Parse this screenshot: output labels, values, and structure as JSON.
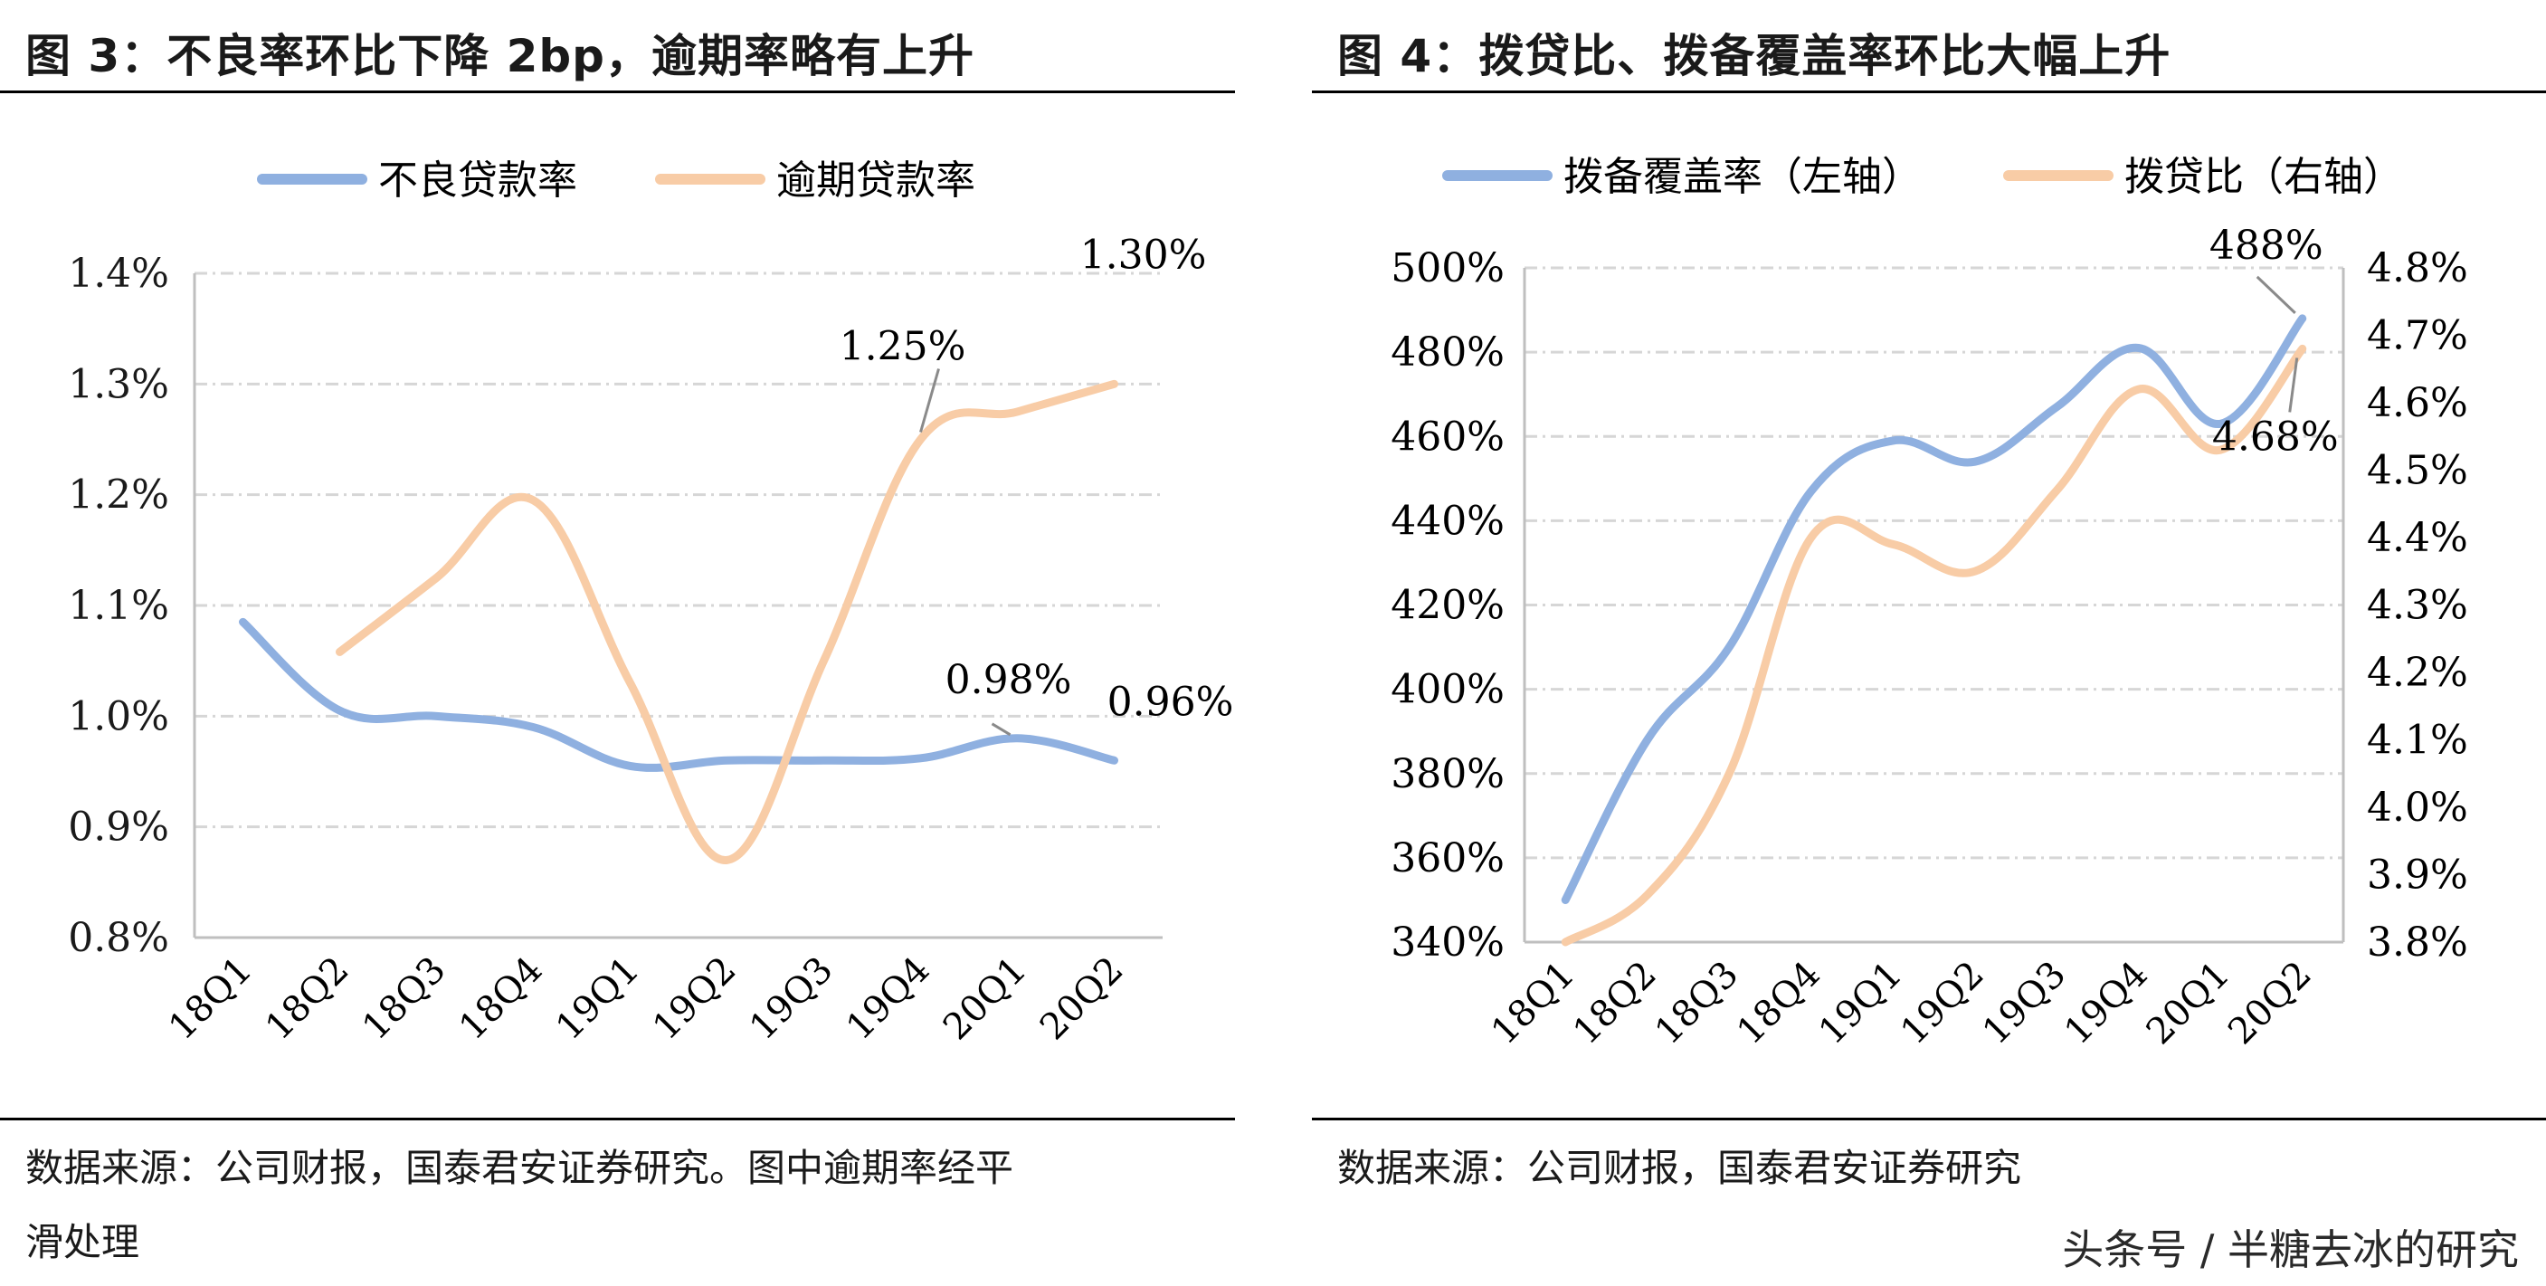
{
  "figures": [
    {
      "title": "图 3：不良率环比下降 2bp，逾期率略有上升",
      "source": "数据来源：公司财报，国泰君安证券研究。图中逾期率经平\n滑处理"
    },
    {
      "title": "图 4：拨贷比、拨备覆盖率环比大幅上升",
      "source": "数据来源：公司财报，国泰君安证券研究"
    }
  ],
  "watermark": "头条号 / 半糖去冰的研究",
  "colors": {
    "blue": "#8fb0e0",
    "orange": "#f8cca6",
    "grid": "#d6d6d6",
    "axis": "#bfbfbf",
    "callout": "#8a8a8a"
  },
  "chart_data": [
    {
      "type": "line",
      "categories": [
        "18Q1",
        "18Q2",
        "18Q3",
        "18Q4",
        "19Q1",
        "19Q2",
        "19Q3",
        "19Q4",
        "20Q1",
        "20Q2"
      ],
      "series": [
        {
          "name": "不良贷款率",
          "color": "#8fb0e0",
          "values": [
            1.085,
            1.005,
            1.0,
            0.99,
            0.955,
            0.96,
            0.96,
            0.962,
            0.98,
            0.96
          ]
        },
        {
          "name": "逾期贷款率",
          "color": "#f8cca6",
          "values": [
            null,
            1.058,
            1.125,
            1.195,
            1.03,
            0.87,
            1.05,
            1.25,
            1.275,
            1.3
          ]
        }
      ],
      "ylim": [
        0.8,
        1.4
      ],
      "yticks": [
        "0.8%",
        "0.9%",
        "1.0%",
        "1.1%",
        "1.2%",
        "1.3%",
        "1.4%"
      ],
      "grid": true,
      "legend": "top",
      "annotations": [
        {
          "text": "1.25%",
          "series": 1,
          "index": 7
        },
        {
          "text": "1.30%",
          "series": 1,
          "index": 9
        },
        {
          "text": "0.98%",
          "series": 0,
          "index": 8
        },
        {
          "text": "0.96%",
          "series": 0,
          "index": 9
        }
      ]
    },
    {
      "type": "line",
      "categories": [
        "18Q1",
        "18Q2",
        "18Q3",
        "18Q4",
        "19Q1",
        "19Q2",
        "19Q3",
        "19Q4",
        "20Q1",
        "20Q2"
      ],
      "series": [
        {
          "name": "拨备覆盖率（左轴）",
          "axis": "left",
          "color": "#8fb0e0",
          "values": [
            350,
            388,
            410,
            447,
            459,
            454,
            467,
            481,
            463,
            488
          ]
        },
        {
          "name": "拨贷比（右轴）",
          "axis": "right",
          "color": "#f8cca6",
          "values": [
            3.8,
            3.87,
            4.05,
            4.4,
            4.39,
            4.35,
            4.47,
            4.62,
            4.53,
            4.68
          ]
        }
      ],
      "ylim_left": [
        340,
        500
      ],
      "ylim_right": [
        3.8,
        4.8
      ],
      "yticks_left": [
        "340%",
        "360%",
        "380%",
        "400%",
        "420%",
        "440%",
        "460%",
        "480%",
        "500%"
      ],
      "yticks_right": [
        "3.8%",
        "3.9%",
        "4.0%",
        "4.1%",
        "4.2%",
        "4.3%",
        "4.4%",
        "4.5%",
        "4.6%",
        "4.7%",
        "4.8%"
      ],
      "grid": true,
      "legend": "top",
      "annotations": [
        {
          "text": "488%",
          "series": 0,
          "index": 9
        },
        {
          "text": "4.68%",
          "series": 1,
          "index": 9
        }
      ]
    }
  ]
}
